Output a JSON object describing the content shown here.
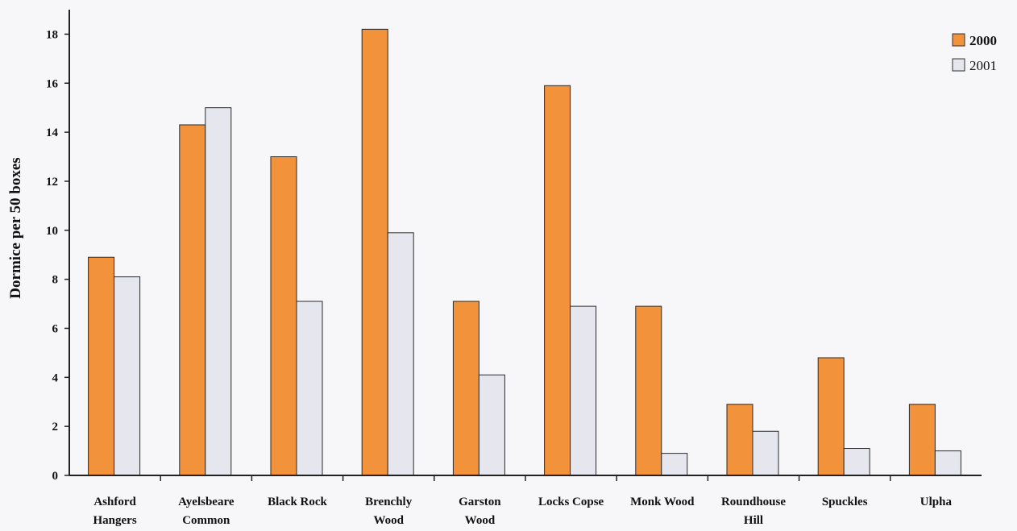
{
  "chart_data": {
    "type": "bar",
    "ylabel": "Dormice per 50 boxes",
    "xlabel": "",
    "ylim": [
      0,
      19
    ],
    "yticks": [
      0,
      2,
      4,
      6,
      8,
      10,
      12,
      14,
      16,
      18
    ],
    "legend_position": "top-right",
    "categories": [
      [
        "Ashford",
        "Hangers"
      ],
      [
        "Ayelsbeare",
        "Common"
      ],
      [
        "Black Rock"
      ],
      [
        "Brenchly",
        "Wood"
      ],
      [
        "Garston",
        "Wood"
      ],
      [
        "Locks Copse"
      ],
      [
        "Monk Wood"
      ],
      [
        "Roundhouse",
        "Hill"
      ],
      [
        "Spuckles"
      ],
      [
        "Ulpha"
      ]
    ],
    "series": [
      {
        "name": "2000",
        "color": "#f2923a",
        "values": [
          8.9,
          14.3,
          13.0,
          18.2,
          7.1,
          15.9,
          6.9,
          2.9,
          4.8,
          2.9
        ]
      },
      {
        "name": "2001",
        "color": "#e6e6ee",
        "values": [
          8.1,
          15.0,
          7.1,
          9.9,
          4.1,
          6.9,
          0.9,
          1.8,
          1.1,
          1.0
        ]
      }
    ]
  }
}
